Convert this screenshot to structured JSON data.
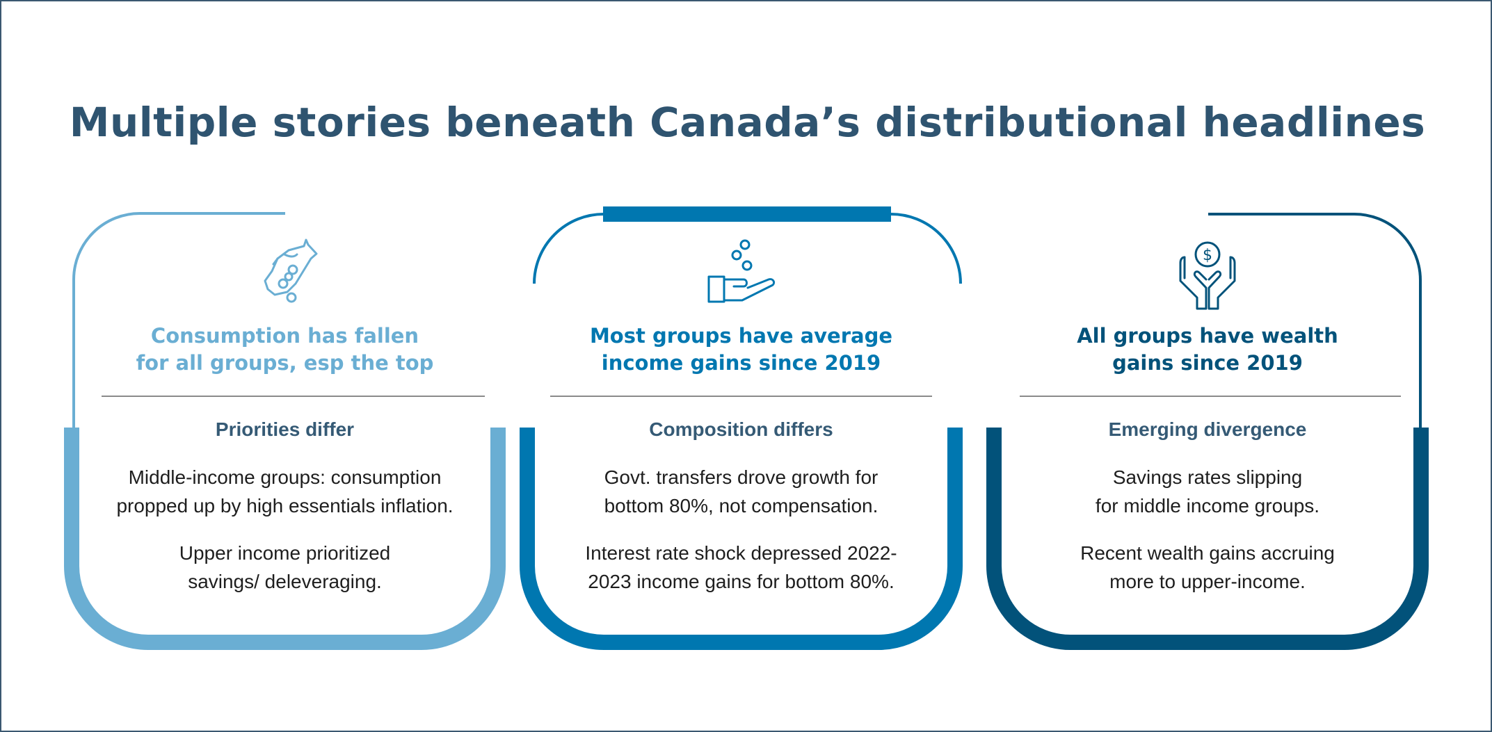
{
  "title": "Multiple stories beneath Canada’s distributional headlines",
  "colors": {
    "card1": "#6aaed3",
    "card2": "#0077b0",
    "card3": "#02527a",
    "title": "#2f5470"
  },
  "cards": [
    {
      "icon": "hand-dropping-coins-icon",
      "headline": [
        "Consumption has fallen",
        "for all groups, esp the top"
      ],
      "subheading": "Priorities differ",
      "paragraphs": [
        [
          "Middle-income groups: consumption",
          "propped up by high essentials inflation."
        ],
        [
          "Upper income prioritized",
          "savings/ deleveraging."
        ]
      ]
    },
    {
      "icon": "hand-receiving-coins-icon",
      "headline": [
        "Most groups have average",
        "income gains since 2019"
      ],
      "subheading": "Composition differs",
      "paragraphs": [
        [
          "Govt. transfers drove growth for",
          "bottom 80%, not compensation."
        ],
        [
          "Interest rate shock depressed 2022-",
          "2023 income gains for bottom 80%."
        ]
      ]
    },
    {
      "icon": "hands-holding-dollar-icon",
      "headline": [
        "All groups have wealth",
        "gains since 2019"
      ],
      "subheading": "Emerging divergence",
      "paragraphs": [
        [
          "Savings rates slipping",
          "for middle income groups."
        ],
        [
          "Recent wealth gains accruing",
          "more to upper-income."
        ]
      ]
    }
  ]
}
